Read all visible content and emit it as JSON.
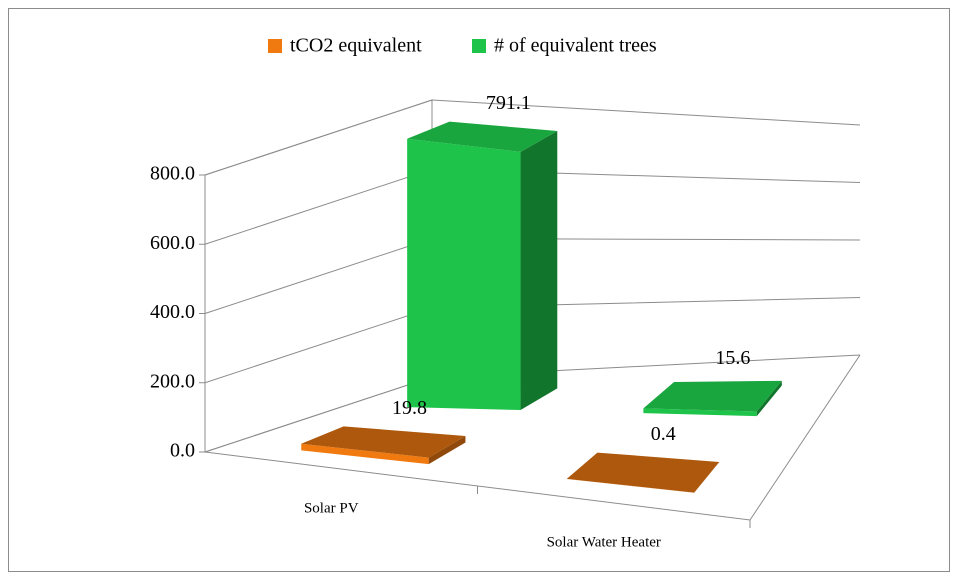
{
  "chart_data": {
    "type": "bar3d",
    "categories": [
      "Solar PV",
      "Solar Water Heater"
    ],
    "series": [
      {
        "name": "tCO2 equivalent",
        "color": "#f07a10",
        "values": [
          19.8,
          0.4
        ]
      },
      {
        "name": "# of equivalent trees",
        "color": "#1ec34a",
        "values": [
          791.1,
          15.6
        ]
      }
    ],
    "ylim": [
      0,
      800
    ],
    "yticks": [
      {
        "value": 0,
        "label": "0.0"
      },
      {
        "value": 200,
        "label": "200.0"
      },
      {
        "value": 400,
        "label": "400.0"
      },
      {
        "value": 600,
        "label": "600.0"
      },
      {
        "value": 800,
        "label": "800.0"
      }
    ],
    "grid": true,
    "legend": "top"
  }
}
